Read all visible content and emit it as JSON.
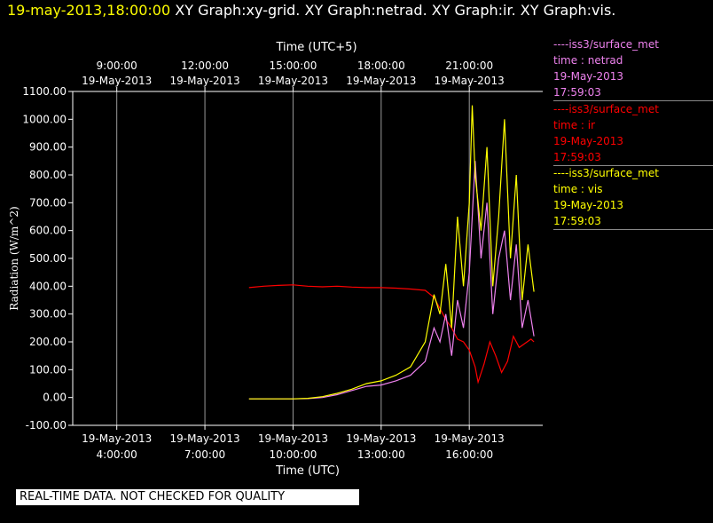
{
  "header": {
    "timestamp": "19-may-2013,18:00:00",
    "graphs": "XY Graph:xy-grid.  XY Graph:netrad.  XY Graph:ir.  XY Graph:vis."
  },
  "legend": [
    {
      "source": "----iss3/surface_met",
      "var": "time : netrad",
      "date": "19-May-2013",
      "time": "17:59:03",
      "color": "#ee82ee"
    },
    {
      "source": "----iss3/surface_met",
      "var": "time : ir",
      "date": "19-May-2013",
      "time": "17:59:03",
      "color": "#ff0000"
    },
    {
      "source": "----iss3/surface_met",
      "var": "time : vis",
      "date": "19-May-2013",
      "time": "17:59:03",
      "color": "#ffff00"
    }
  ],
  "footer": "REAL-TIME DATA. NOT CHECKED FOR QUALITY",
  "chart_data": {
    "type": "line",
    "ylabel": "Radiation (W/m^2)",
    "xlabel": "Time (UTC)",
    "top_xlabel": "Time (UTC+5)",
    "ylim": [
      -100,
      1100
    ],
    "y_ticks": [
      -100,
      0,
      100,
      200,
      300,
      400,
      500,
      600,
      700,
      800,
      900,
      1000,
      1100
    ],
    "y_tick_labels": [
      "-100.00",
      "0.00",
      "100.00",
      "200.00",
      "300.00",
      "400.00",
      "500.00",
      "600.00",
      "700.00",
      "800.00",
      "900.00",
      "1000.00",
      "1100.00"
    ],
    "xlim": [
      2.5,
      18.5
    ],
    "x_ticks": [
      4,
      7,
      10,
      13,
      16
    ],
    "bottom_tick_labels": [
      [
        "19-May-2013",
        "4:00:00"
      ],
      [
        "19-May-2013",
        "7:00:00"
      ],
      [
        "19-May-2013",
        "10:00:00"
      ],
      [
        "19-May-2013",
        "13:00:00"
      ],
      [
        "19-May-2013",
        "16:00:00"
      ]
    ],
    "top_tick_labels": [
      [
        "9:00:00",
        "19-May-2013"
      ],
      [
        "12:00:00",
        "19-May-2013"
      ],
      [
        "15:00:00",
        "19-May-2013"
      ],
      [
        "18:00:00",
        "19-May-2013"
      ],
      [
        "21:00:00",
        "19-May-2013"
      ]
    ],
    "grid": "vertical",
    "series": [
      {
        "name": "time : ir",
        "color": "#ff0000",
        "x": [
          8.5,
          9.0,
          9.5,
          10.0,
          10.5,
          11.0,
          11.5,
          12.0,
          12.5,
          13.0,
          13.5,
          14.0,
          14.5,
          14.8,
          15.0,
          15.2,
          15.4,
          15.6,
          15.8,
          16.0,
          16.2,
          16.3,
          16.5,
          16.7,
          16.9,
          17.1,
          17.3,
          17.5,
          17.7,
          17.9,
          18.1,
          18.2
        ],
        "y": [
          395,
          400,
          403,
          405,
          400,
          398,
          400,
          397,
          395,
          395,
          393,
          390,
          385,
          360,
          320,
          280,
          250,
          210,
          200,
          170,
          110,
          55,
          120,
          200,
          150,
          90,
          130,
          220,
          180,
          195,
          210,
          200
        ]
      },
      {
        "name": "time : netrad",
        "color": "#ee82ee",
        "x": [
          8.5,
          9.0,
          9.5,
          10.0,
          10.5,
          11.0,
          11.5,
          12.0,
          12.5,
          13.0,
          13.5,
          14.0,
          14.5,
          14.8,
          15.0,
          15.2,
          15.4,
          15.6,
          15.8,
          16.0,
          16.2,
          16.4,
          16.6,
          16.8,
          17.0,
          17.2,
          17.4,
          17.6,
          17.8,
          18.0,
          18.2
        ],
        "y": [
          -5,
          -5,
          -5,
          -5,
          -4,
          0,
          10,
          25,
          40,
          45,
          60,
          80,
          130,
          250,
          200,
          300,
          150,
          350,
          250,
          450,
          850,
          500,
          700,
          300,
          500,
          600,
          350,
          550,
          250,
          350,
          220
        ]
      },
      {
        "name": "time : vis",
        "color": "#ffff00",
        "x": [
          8.5,
          9.0,
          9.5,
          10.0,
          10.5,
          11.0,
          11.5,
          12.0,
          12.5,
          13.0,
          13.5,
          14.0,
          14.5,
          14.8,
          15.0,
          15.2,
          15.4,
          15.6,
          15.8,
          16.0,
          16.1,
          16.2,
          16.4,
          16.6,
          16.8,
          17.0,
          17.2,
          17.4,
          17.6,
          17.8,
          18.0,
          18.2
        ],
        "y": [
          -5,
          -5,
          -5,
          -5,
          -3,
          3,
          15,
          30,
          50,
          60,
          80,
          110,
          200,
          370,
          300,
          480,
          250,
          650,
          400,
          700,
          1050,
          800,
          600,
          900,
          400,
          650,
          1000,
          500,
          800,
          350,
          550,
          380
        ]
      }
    ]
  }
}
